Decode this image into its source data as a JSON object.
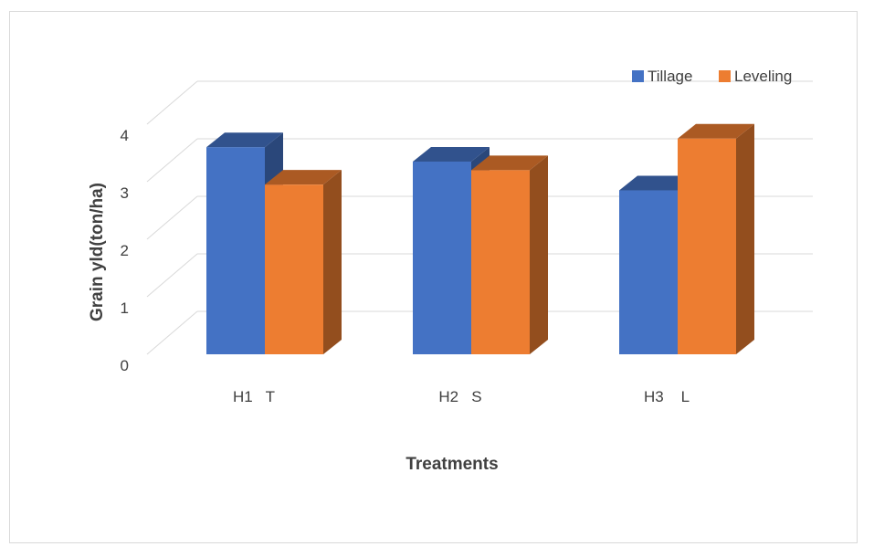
{
  "chart_data": {
    "type": "bar",
    "categories": [
      "H1   T",
      "H2   S",
      "H3    L"
    ],
    "series": [
      {
        "name": "Tillage",
        "values": [
          3.6,
          3.35,
          2.85
        ],
        "color": "#4472C4"
      },
      {
        "name": "Leveling",
        "values": [
          2.95,
          3.2,
          3.75
        ],
        "color": "#ED7D31"
      }
    ],
    "title": "",
    "xlabel": "Treatments",
    "ylabel": "Grain yld(ton/ha)",
    "ylim": [
      0,
      4
    ],
    "yticks": [
      "0",
      "1",
      "2",
      "3",
      "4"
    ],
    "grid": true,
    "legend_position": "top-right",
    "style": "3d-clustered-column"
  }
}
